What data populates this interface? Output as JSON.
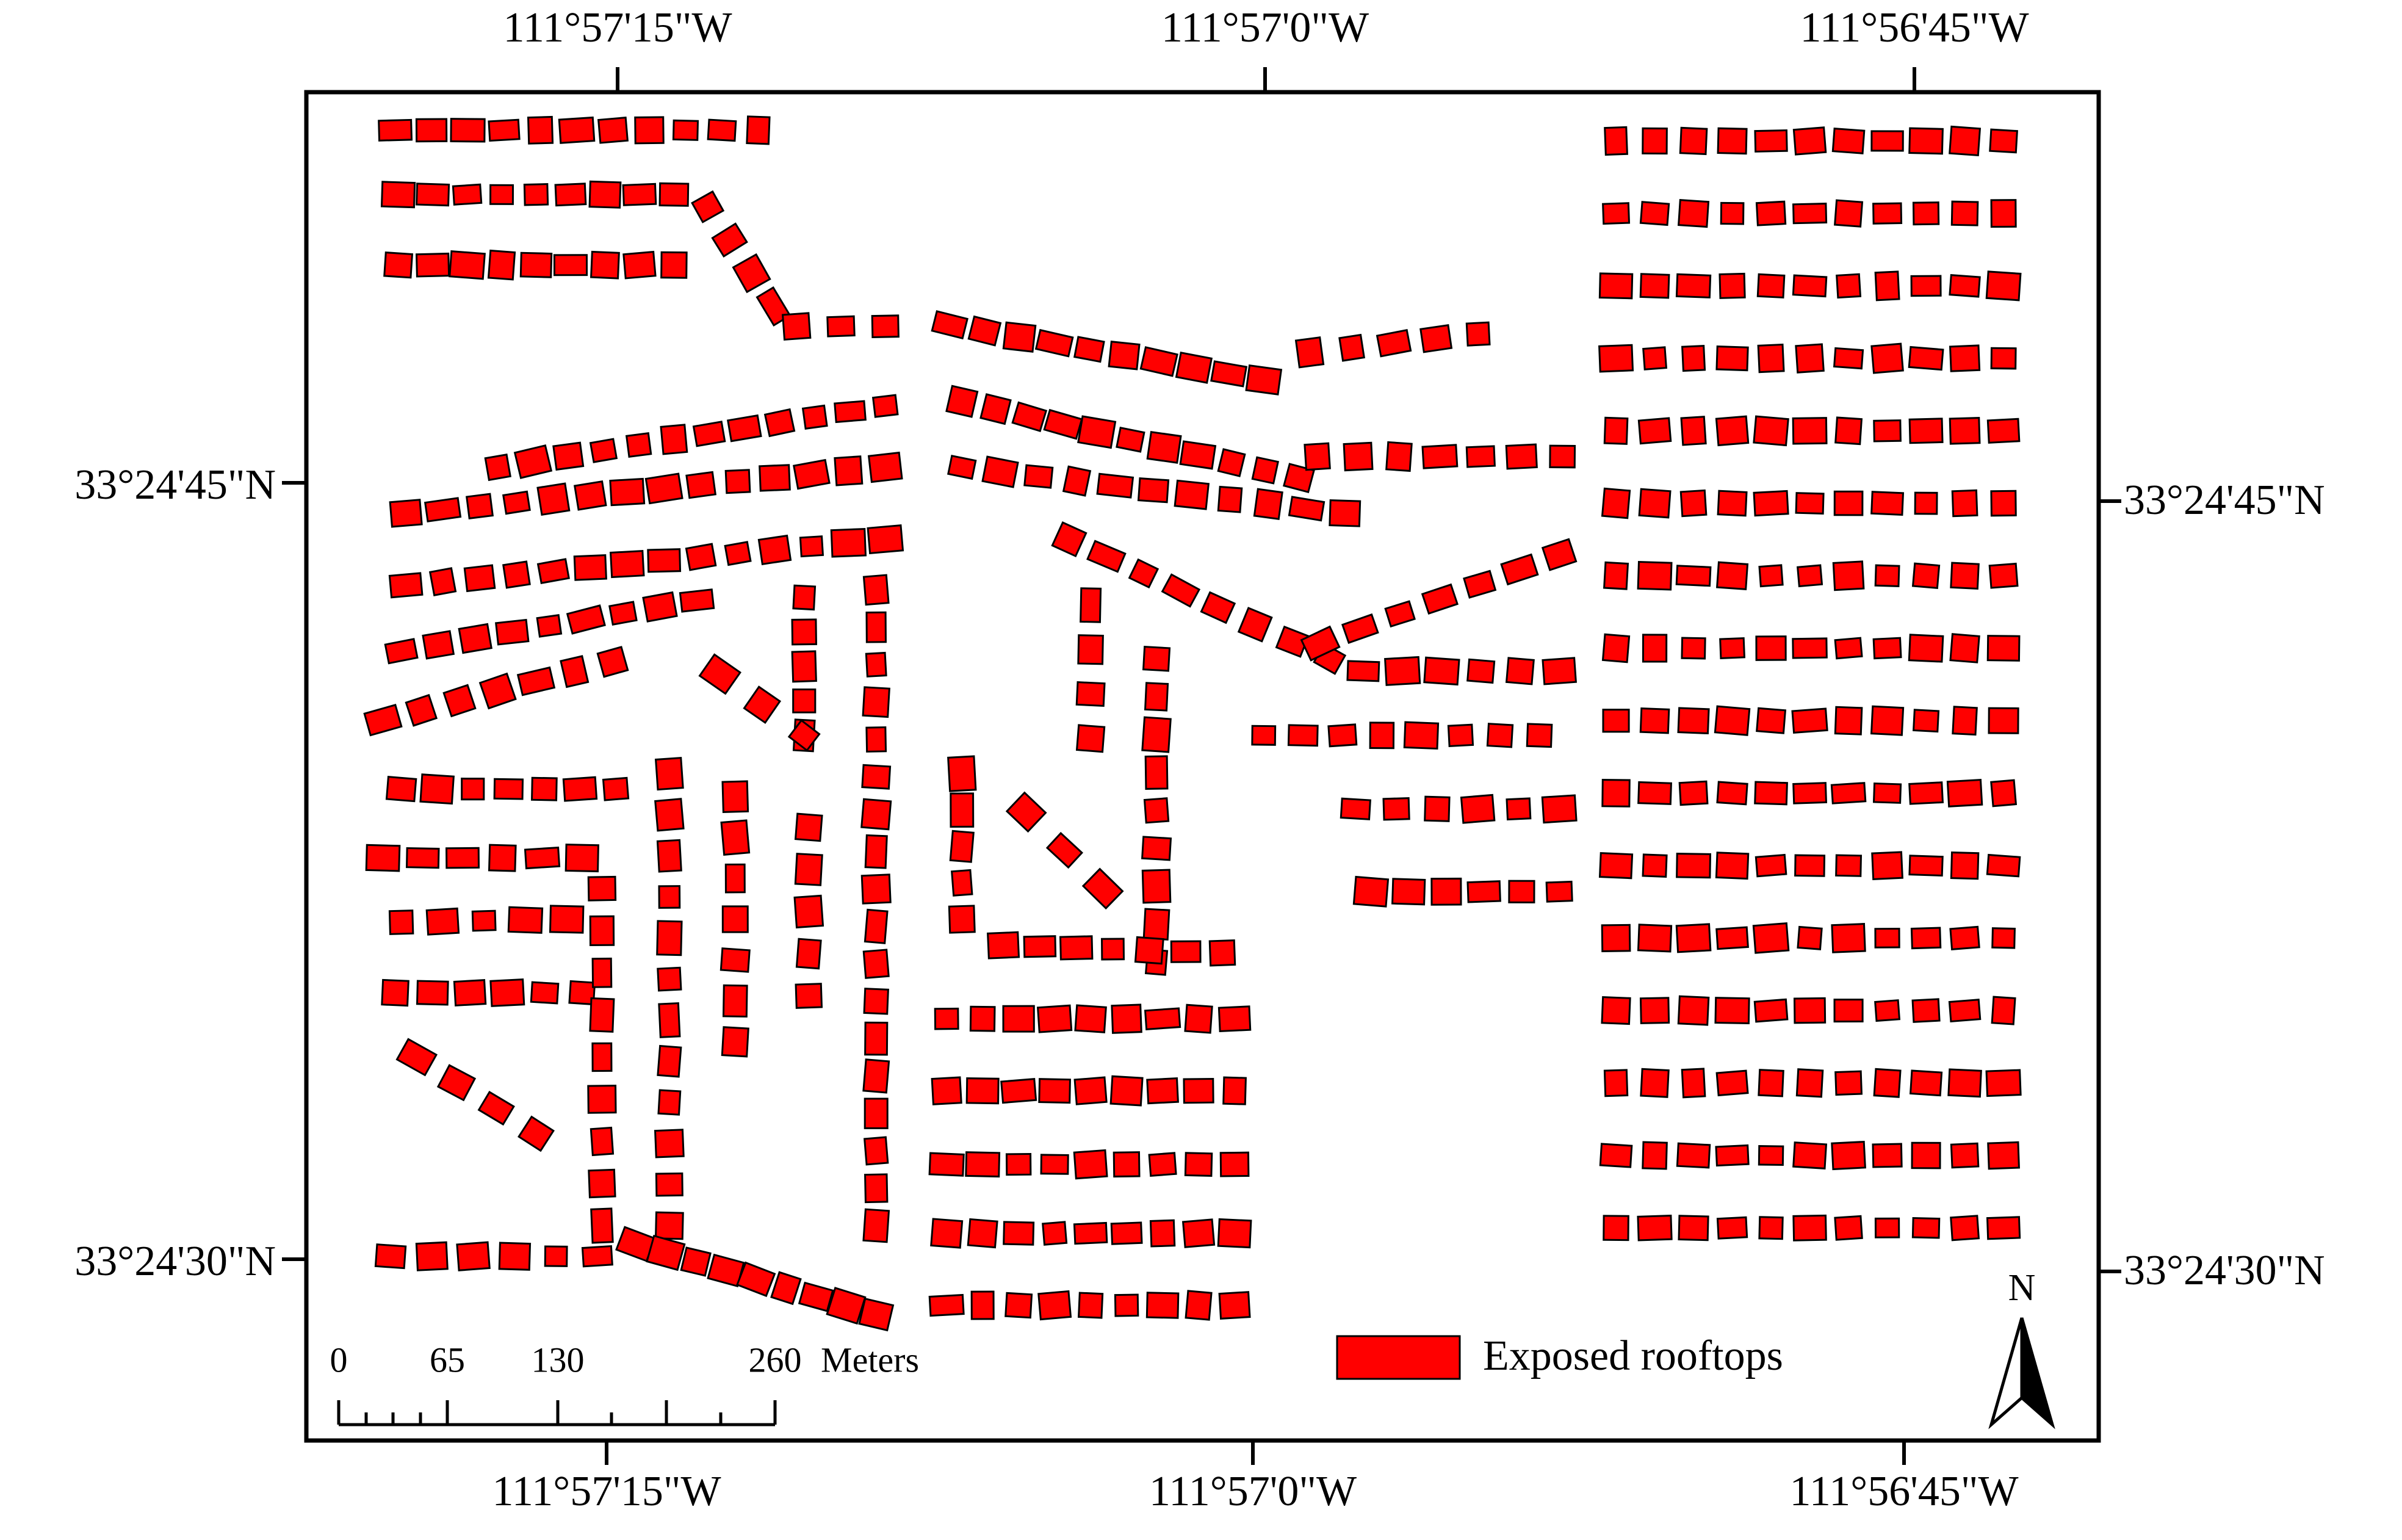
{
  "map": {
    "top_labels": [
      "111°57'15\"W",
      "111°57'0\"W",
      "111°56'45\"W"
    ],
    "bottom_labels": [
      "111°57'15\"W",
      "111°57'0\"W",
      "111°56'45\"W"
    ],
    "left_labels": [
      "33°24'45\"N",
      "33°24'30\"N"
    ],
    "right_labels": [
      "33°24'45\"N",
      "33°24'30\"N"
    ],
    "scale_bar": {
      "labels": [
        0,
        65,
        130,
        260
      ],
      "unit": "Meters"
    },
    "legend": {
      "label": "Exposed rooftops"
    },
    "north_arrow": "N"
  }
}
